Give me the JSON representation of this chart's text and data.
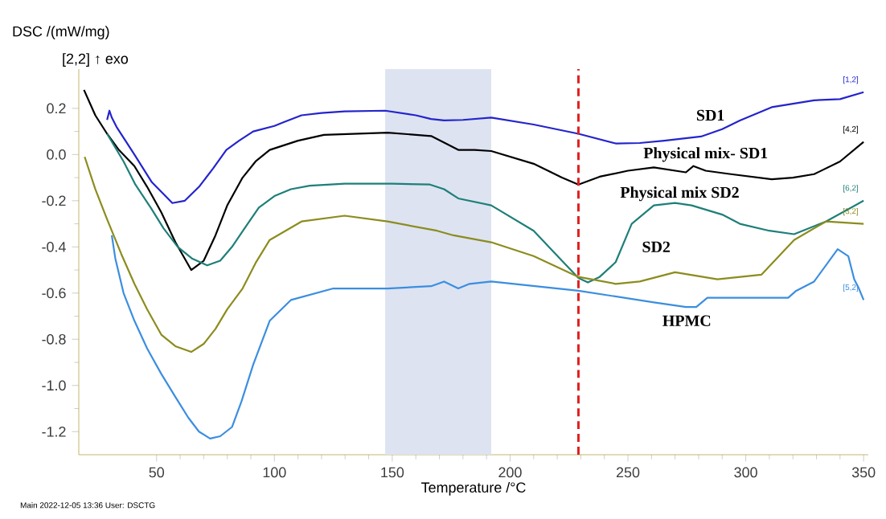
{
  "chart_data": {
    "type": "line",
    "xlabel": "Temperature /°C",
    "ylabel": "DSC /(mW/mg)",
    "xlim": [
      17,
      352
    ],
    "ylim": [
      -1.3,
      0.37
    ],
    "xticks": [
      50,
      100,
      150,
      200,
      250,
      300,
      350
    ],
    "yticks": [
      -1.2,
      {
        "value": -1,
        "label": "-1.0"
      },
      -0.8,
      -0.6,
      -0.4,
      -0.2,
      {
        "value": 0,
        "label": "0.0"
      },
      0.2
    ],
    "series": [
      {
        "name": "SD1",
        "color": "#2424cc",
        "x": [
          29,
          30,
          31,
          33,
          40.6,
          48,
          56.7,
          62,
          68,
          74,
          79.6,
          85,
          91,
          100,
          104,
          111.5,
          120,
          129.8,
          147,
          160,
          166.5,
          172,
          180,
          192,
          210,
          229,
          244.8,
          255,
          265.4,
          281,
          290,
          297.5,
          311,
          320,
          329,
          340,
          350
        ],
        "values": [
          0.15,
          0.19,
          0.16,
          0.12,
          0.0,
          -0.12,
          -0.21,
          -0.2,
          -0.14,
          -0.06,
          0.02,
          0.06,
          0.1,
          0.124,
          0.14,
          0.17,
          0.18,
          0.187,
          0.19,
          0.17,
          0.154,
          0.148,
          0.15,
          0.16,
          0.13,
          0.09,
          0.048,
          0.05,
          0.06,
          0.078,
          0.11,
          0.147,
          0.205,
          0.22,
          0.235,
          0.24,
          0.27
        ]
      },
      {
        "name": "Physical mix- SD1",
        "color": "#000000",
        "x": [
          19.2,
          24,
          29,
          34,
          40.6,
          46,
          52,
          58,
          64.7,
          70,
          75,
          80,
          86.5,
          92,
          98,
          110,
          121,
          148,
          166.5,
          173.7,
          178,
          185,
          192,
          210,
          222,
          229,
          238,
          250,
          261,
          274.6,
          277.8,
          283,
          293,
          311,
          320,
          329,
          340,
          350
        ],
        "values": [
          0.28,
          0.17,
          0.09,
          0.02,
          -0.05,
          -0.14,
          -0.25,
          -0.38,
          -0.5,
          -0.46,
          -0.35,
          -0.22,
          -0.1,
          -0.03,
          0.02,
          0.06,
          0.085,
          0.095,
          0.08,
          0.043,
          0.02,
          0.02,
          0.015,
          -0.04,
          -0.1,
          -0.13,
          -0.096,
          -0.07,
          -0.056,
          -0.077,
          -0.05,
          -0.07,
          -0.084,
          -0.107,
          -0.1,
          -0.085,
          -0.03,
          0.055
        ]
      },
      {
        "name": "Physical mix SD2",
        "color": "#1e7f78",
        "x": [
          29,
          36,
          41,
          47.5,
          53,
          59,
          65,
          71.5,
          77,
          82,
          88,
          93.4,
          100,
          107,
          115,
          129.8,
          150,
          166,
          172,
          178,
          192,
          210,
          222,
          229,
          233,
          238,
          244.8,
          251.6,
          261,
          270,
          277,
          290,
          297.5,
          310,
          320.5,
          334,
          350
        ],
        "values": [
          0.09,
          -0.03,
          -0.13,
          -0.23,
          -0.32,
          -0.4,
          -0.45,
          -0.48,
          -0.46,
          -0.4,
          -0.31,
          -0.23,
          -0.18,
          -0.15,
          -0.135,
          -0.126,
          -0.126,
          -0.13,
          -0.15,
          -0.19,
          -0.22,
          -0.33,
          -0.46,
          -0.535,
          -0.554,
          -0.53,
          -0.466,
          -0.3,
          -0.22,
          -0.21,
          -0.22,
          -0.26,
          -0.3,
          -0.33,
          -0.345,
          -0.29,
          -0.2
        ]
      },
      {
        "name": "SD2",
        "color": "#8c8c1e",
        "x": [
          19.5,
          24,
          29,
          35,
          40.6,
          46,
          52,
          58,
          64.7,
          70,
          75,
          80,
          86.5,
          92,
          98,
          111.5,
          129.8,
          148,
          169,
          176,
          192,
          210,
          229,
          244.8,
          255,
          270,
          288,
          306.7,
          320.5,
          334,
          350
        ],
        "values": [
          -0.01,
          -0.15,
          -0.28,
          -0.43,
          -0.56,
          -0.67,
          -0.78,
          -0.83,
          -0.855,
          -0.82,
          -0.755,
          -0.67,
          -0.58,
          -0.47,
          -0.37,
          -0.29,
          -0.265,
          -0.29,
          -0.33,
          -0.35,
          -0.38,
          -0.44,
          -0.53,
          -0.56,
          -0.55,
          -0.51,
          -0.54,
          -0.52,
          -0.37,
          -0.29,
          -0.3
        ]
      },
      {
        "name": "HPMC",
        "color": "#3b8ee0",
        "x": [
          31,
          32.5,
          36,
          40.6,
          46,
          52,
          58,
          63.5,
          68,
          72.7,
          77,
          82,
          86,
          91,
          98,
          107,
          125,
          148,
          166.5,
          172,
          178,
          182.8,
          192,
          229,
          261,
          274.6,
          279,
          283.7,
          297.5,
          318,
          321.4,
          329,
          339,
          343.5,
          346,
          348,
          350
        ],
        "values": [
          -0.35,
          -0.45,
          -0.6,
          -0.72,
          -0.84,
          -0.95,
          -1.05,
          -1.14,
          -1.2,
          -1.23,
          -1.22,
          -1.18,
          -1.07,
          -0.91,
          -0.72,
          -0.63,
          -0.58,
          -0.58,
          -0.57,
          -0.55,
          -0.58,
          -0.56,
          -0.55,
          -0.59,
          -0.64,
          -0.66,
          -0.66,
          -0.62,
          -0.62,
          -0.62,
          -0.59,
          -0.55,
          -0.41,
          -0.44,
          -0.54,
          -0.58,
          -0.63
        ]
      }
    ],
    "ref_lines": [
      {
        "axis": "x",
        "value": 229,
        "color": "#e02020",
        "line_style": "dashed"
      }
    ],
    "bands": [
      {
        "axis": "x",
        "from": 147,
        "to": 192,
        "color": "#dde3f1"
      }
    ],
    "annotations": [
      "[2,2] ↑ exo",
      "Main   2022-12-05 13:36   User: DSCTG",
      "[1,2]",
      "[4,2]",
      "[6,2]",
      "[3,2]",
      "[5,2]"
    ]
  }
}
